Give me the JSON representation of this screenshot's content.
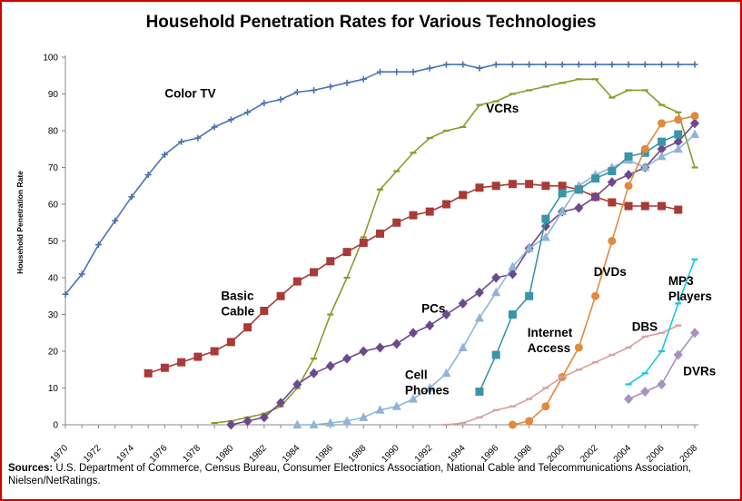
{
  "chart_data": {
    "type": "line",
    "title": "Household Penetration Rates for Various Technologies",
    "xlabel": "",
    "ylabel": "Household Penetration Rate",
    "xlim": [
      1970,
      2008
    ],
    "ylim": [
      0,
      100
    ],
    "x_ticks": [
      "1970",
      "1972",
      "1974",
      "1976",
      "1978",
      "1980",
      "1982",
      "1984",
      "1986",
      "1988",
      "1990",
      "1992",
      "1994",
      "1996",
      "1998",
      "2000",
      "2002",
      "2004",
      "2006",
      "2008"
    ],
    "y_ticks": [
      "0",
      "10",
      "20",
      "30",
      "40",
      "50",
      "60",
      "70",
      "80",
      "90",
      "100"
    ],
    "grid": false,
    "legend": "none",
    "series": [
      {
        "name": "Color TV",
        "color": "#4a72b0",
        "marker": "plus",
        "label": [
          "Color TV"
        ],
        "label_at": [
          1976,
          89
        ],
        "x": [
          1970,
          1971,
          1972,
          1973,
          1974,
          1975,
          1976,
          1977,
          1978,
          1979,
          1980,
          1981,
          1982,
          1983,
          1984,
          1985,
          1986,
          1987,
          1988,
          1989,
          1990,
          1991,
          1992,
          1993,
          1994,
          1995,
          1996,
          1997,
          1998,
          1999,
          2000,
          2001,
          2002,
          2003,
          2004,
          2005,
          2006,
          2007,
          2008
        ],
        "y": [
          35.5,
          41,
          49,
          55.5,
          62,
          68,
          73.5,
          77,
          78,
          81,
          83,
          85,
          87.5,
          88.5,
          90.5,
          91,
          92,
          93,
          94,
          96,
          96,
          96,
          97,
          98,
          98,
          97,
          98,
          98,
          98,
          98,
          98,
          98,
          98,
          98,
          98,
          98,
          98,
          98,
          98
        ]
      },
      {
        "name": "VCRs",
        "color": "#8b9a2c",
        "marker": "dash",
        "label": [
          "VCRs"
        ],
        "label_at": [
          1995.4,
          85
        ],
        "x": [
          1979,
          1980,
          1981,
          1982,
          1983,
          1984,
          1985,
          1986,
          1987,
          1988,
          1989,
          1990,
          1991,
          1992,
          1993,
          1994,
          1995,
          1996,
          1997,
          1998,
          1999,
          2000,
          2001,
          2002,
          2003,
          2004,
          2005,
          2006,
          2007,
          2008
        ],
        "y": [
          0.5,
          1,
          2,
          3,
          5,
          10,
          18,
          30,
          40,
          51,
          64,
          69,
          74,
          78,
          80,
          81,
          87,
          88,
          90,
          91,
          92,
          93,
          94,
          94,
          89,
          91,
          91,
          87,
          85,
          70
        ]
      },
      {
        "name": "Basic Cable",
        "color": "#a83a38",
        "marker": "square",
        "label": [
          "Basic",
          "Cable"
        ],
        "label_at": [
          1979.4,
          34
        ],
        "x": [
          1975,
          1976,
          1977,
          1978,
          1979,
          1980,
          1981,
          1982,
          1983,
          1984,
          1985,
          1986,
          1987,
          1988,
          1989,
          1990,
          1991,
          1992,
          1993,
          1994,
          1995,
          1996,
          1997,
          1998,
          1999,
          2000,
          2001,
          2002,
          2003,
          2004,
          2005,
          2006,
          2007
        ],
        "y": [
          14,
          15.5,
          17,
          18.5,
          20,
          22.5,
          26.5,
          31,
          35,
          39,
          41.5,
          44.5,
          47,
          49.5,
          52,
          55,
          57,
          58,
          60,
          62.5,
          64.5,
          65,
          65.5,
          65.5,
          65,
          65,
          64,
          62,
          60.5,
          59.5,
          59.5,
          59.5,
          58.5
        ]
      },
      {
        "name": "PCs",
        "color": "#6a4a8c",
        "marker": "diamond",
        "label": [
          "PCs"
        ],
        "label_at": [
          1991.5,
          30.5
        ],
        "x": [
          1980,
          1981,
          1982,
          1983,
          1984,
          1985,
          1986,
          1987,
          1988,
          1989,
          1990,
          1991,
          1992,
          1993,
          1994,
          1995,
          1996,
          1997,
          1998,
          1999,
          2000,
          2001,
          2002,
          2003,
          2004,
          2005,
          2006,
          2007,
          2008
        ],
        "y": [
          0,
          1,
          2,
          6,
          11,
          14,
          16,
          18,
          20,
          21,
          22,
          25,
          27,
          30,
          33,
          36,
          40,
          41,
          48,
          54,
          58,
          59,
          62,
          66,
          68,
          70,
          75,
          77,
          82
        ]
      },
      {
        "name": "Cell Phones",
        "color": "#90b4d8",
        "marker": "triangle",
        "label": [
          "Cell",
          "Phones"
        ],
        "label_at": [
          1990.5,
          12.5
        ],
        "x": [
          1984,
          1985,
          1986,
          1987,
          1988,
          1989,
          1990,
          1991,
          1992,
          1993,
          1994,
          1995,
          1996,
          1997,
          1998,
          1999,
          2000,
          2001,
          2002,
          2003,
          2004,
          2005,
          2006,
          2007,
          2008
        ],
        "y": [
          0,
          0,
          0.5,
          1,
          2,
          4,
          5,
          7,
          10,
          14,
          21,
          29,
          36,
          43,
          48,
          51,
          58,
          65,
          68,
          70,
          72,
          70,
          73,
          75,
          79
        ]
      },
      {
        "name": "Internet Access",
        "color": "#3a95a8",
        "marker": "square",
        "label": [
          "Internet",
          "Access"
        ],
        "label_at": [
          1997.9,
          24
        ],
        "x": [
          1995,
          1996,
          1997,
          1998,
          1999,
          2000,
          2001,
          2002,
          2003,
          2004,
          2005,
          2006,
          2007
        ],
        "y": [
          9,
          19,
          30,
          35,
          56,
          63,
          64,
          67,
          69,
          73,
          74,
          77,
          79
        ]
      },
      {
        "name": "DVDs",
        "color": "#e08a3c",
        "marker": "circle",
        "label": [
          "DVDs"
        ],
        "label_at": [
          2001.9,
          40.5
        ],
        "x": [
          1997,
          1998,
          1999,
          2000,
          2001,
          2002,
          2003,
          2004,
          2005,
          2006,
          2007,
          2008
        ],
        "y": [
          0,
          1,
          5,
          13,
          21,
          35,
          50,
          65,
          75,
          82,
          83,
          84
        ]
      },
      {
        "name": "DBS",
        "color": "#d8a0a0",
        "marker": "dash",
        "label": [
          "DBS"
        ],
        "label_at": [
          2004.2,
          25.5
        ],
        "x": [
          1993,
          1994,
          1995,
          1996,
          1997,
          1998,
          1999,
          2000,
          2001,
          2002,
          2003,
          2004,
          2005,
          2006,
          2007
        ],
        "y": [
          0,
          0.5,
          2,
          4,
          5,
          7,
          10,
          13,
          15,
          17,
          19,
          21,
          24,
          25,
          27
        ]
      },
      {
        "name": "MP3 Players",
        "color": "#18c8e0",
        "marker": "dash",
        "label": [
          "MP3",
          "Players"
        ],
        "label_at": [
          2006.4,
          38
        ],
        "x": [
          2004,
          2005,
          2006,
          2007,
          2008
        ],
        "y": [
          11,
          14,
          20,
          33,
          45
        ]
      },
      {
        "name": "DVRs",
        "color": "#a890c0",
        "marker": "diamond",
        "label": [
          "DVRs"
        ],
        "label_at": [
          2007.3,
          13.5
        ],
        "x": [
          2004,
          2005,
          2006,
          2007,
          2008
        ],
        "y": [
          7,
          9,
          11,
          19,
          25
        ]
      }
    ]
  },
  "sources": {
    "label": "Sources:",
    "text": " U.S. Department of Commerce, Census Bureau, Consumer Electronics Association, National Cable and Telecommunications Association, Nielsen/NetRatings."
  }
}
